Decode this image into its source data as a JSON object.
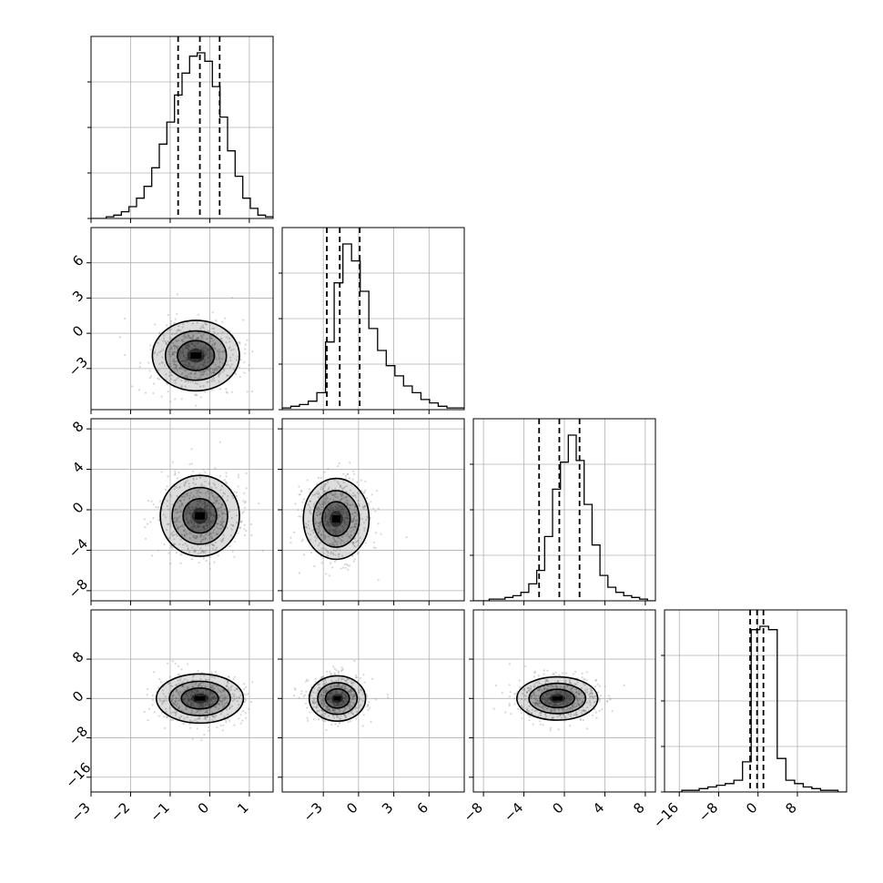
{
  "chart_data": {
    "type": "corner",
    "grid": true,
    "colors": {
      "line": "#000000",
      "grid": "#b0b0b0",
      "scatter": "#8c8c8c"
    },
    "params": [
      {
        "range": [
          -3,
          1.6
        ],
        "ticks": [
          -3,
          -2,
          -1,
          0,
          1
        ],
        "tick_labels": [
          "−3",
          "−2",
          "−1",
          "0",
          "1"
        ],
        "quantiles": [
          -0.8,
          -0.25,
          0.25
        ]
      },
      {
        "range": [
          -6.5,
          9
        ],
        "ticks": [
          -3,
          0,
          3,
          6
        ],
        "tick_labels": [
          "−3",
          "0",
          "3",
          "6"
        ],
        "quantiles": [
          -2.7,
          -1.6,
          0.1
        ]
      },
      {
        "range": [
          -9,
          9
        ],
        "ticks": [
          -8,
          -4,
          0,
          4,
          8
        ],
        "tick_labels": [
          "−8",
          "−4",
          "0",
          "4",
          "8"
        ],
        "quantiles": [
          -2.5,
          -0.5,
          1.5
        ]
      },
      {
        "range": [
          -19,
          18
        ],
        "ticks": [
          -16,
          -8,
          0,
          8
        ],
        "tick_labels": [
          "−16",
          "−8",
          "0",
          "8"
        ],
        "quantiles": [
          -1.6,
          -0.2,
          1.1
        ]
      }
    ],
    "histograms": [
      {
        "counts": [
          0,
          0,
          1,
          2,
          4,
          7,
          12,
          19,
          30,
          44,
          57,
          73,
          86,
          96,
          98,
          93,
          78,
          60,
          40,
          25,
          12,
          6,
          2,
          1
        ]
      },
      {
        "counts": [
          1,
          2,
          3,
          5,
          10,
          40,
          75,
          98,
          88,
          70,
          48,
          35,
          26,
          20,
          14,
          10,
          6,
          4,
          2,
          1,
          1
        ]
      },
      {
        "counts": [
          0,
          0,
          1,
          1,
          2,
          3,
          5,
          10,
          18,
          38,
          66,
          82,
          98,
          83,
          57,
          33,
          15,
          8,
          5,
          3,
          2,
          1,
          0
        ]
      },
      {
        "counts": [
          0,
          0,
          1,
          1,
          2,
          3,
          4,
          5,
          7,
          18,
          97,
          99,
          97,
          20,
          7,
          5,
          3,
          2,
          1,
          1,
          0
        ]
      }
    ],
    "pairs": [
      {
        "x": 0,
        "y": 1,
        "center": [
          -0.35,
          -1.9
        ],
        "spread": [
          0.55,
          1.5
        ]
      },
      {
        "x": 0,
        "y": 2,
        "center": [
          -0.25,
          -0.6
        ],
        "spread": [
          0.5,
          2.0
        ]
      },
      {
        "x": 1,
        "y": 2,
        "center": [
          -1.9,
          -0.9
        ],
        "spread": [
          1.4,
          2.0
        ]
      },
      {
        "x": 0,
        "y": 3,
        "center": [
          -0.25,
          0.0
        ],
        "spread": [
          0.55,
          2.5
        ]
      },
      {
        "x": 1,
        "y": 3,
        "center": [
          -1.8,
          0.0
        ],
        "spread": [
          1.2,
          2.3
        ]
      },
      {
        "x": 2,
        "y": 3,
        "center": [
          -0.7,
          0.0
        ],
        "spread": [
          2.0,
          2.2
        ]
      }
    ]
  }
}
